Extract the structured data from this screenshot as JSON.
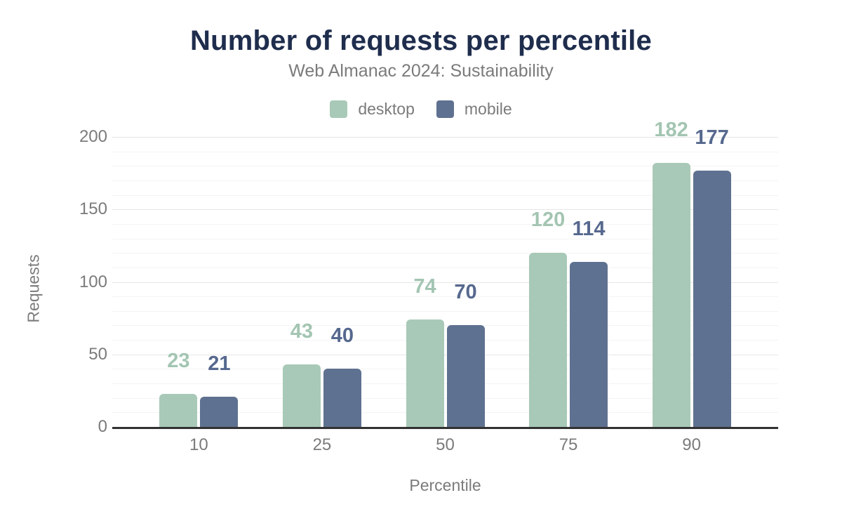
{
  "header": {
    "title": "Number of requests per percentile",
    "subtitle": "Web Almanac 2024: Sustainability"
  },
  "chart_data": {
    "type": "bar",
    "title": "Number of requests per percentile",
    "subtitle": "Web Almanac 2024: Sustainability",
    "xlabel": "Percentile",
    "ylabel": "Requests",
    "categories": [
      "10",
      "25",
      "50",
      "75",
      "90"
    ],
    "series": [
      {
        "name": "desktop",
        "color": "#a8c9b7",
        "label_color": "#a3c5b2",
        "values": [
          23,
          43,
          74,
          120,
          182
        ]
      },
      {
        "name": "mobile",
        "color": "#5f7190",
        "label_color": "#56688e",
        "values": [
          21,
          40,
          70,
          114,
          177
        ]
      }
    ],
    "ylim": [
      0,
      200
    ],
    "ytick_step": 50,
    "minor_grid_step": 10,
    "grid": true,
    "legend_position": "top",
    "yticks": [
      "0",
      "50",
      "100",
      "150",
      "200"
    ]
  },
  "colors": {
    "background": "#ffffff",
    "title": "#1f2d4d",
    "muted_text": "#7b7b7b",
    "axis_line": "#323232",
    "major_grid": "#e6e6e6",
    "minor_grid": "#f4f4f4",
    "desktop": "#a8c9b7",
    "mobile": "#5f7190"
  }
}
